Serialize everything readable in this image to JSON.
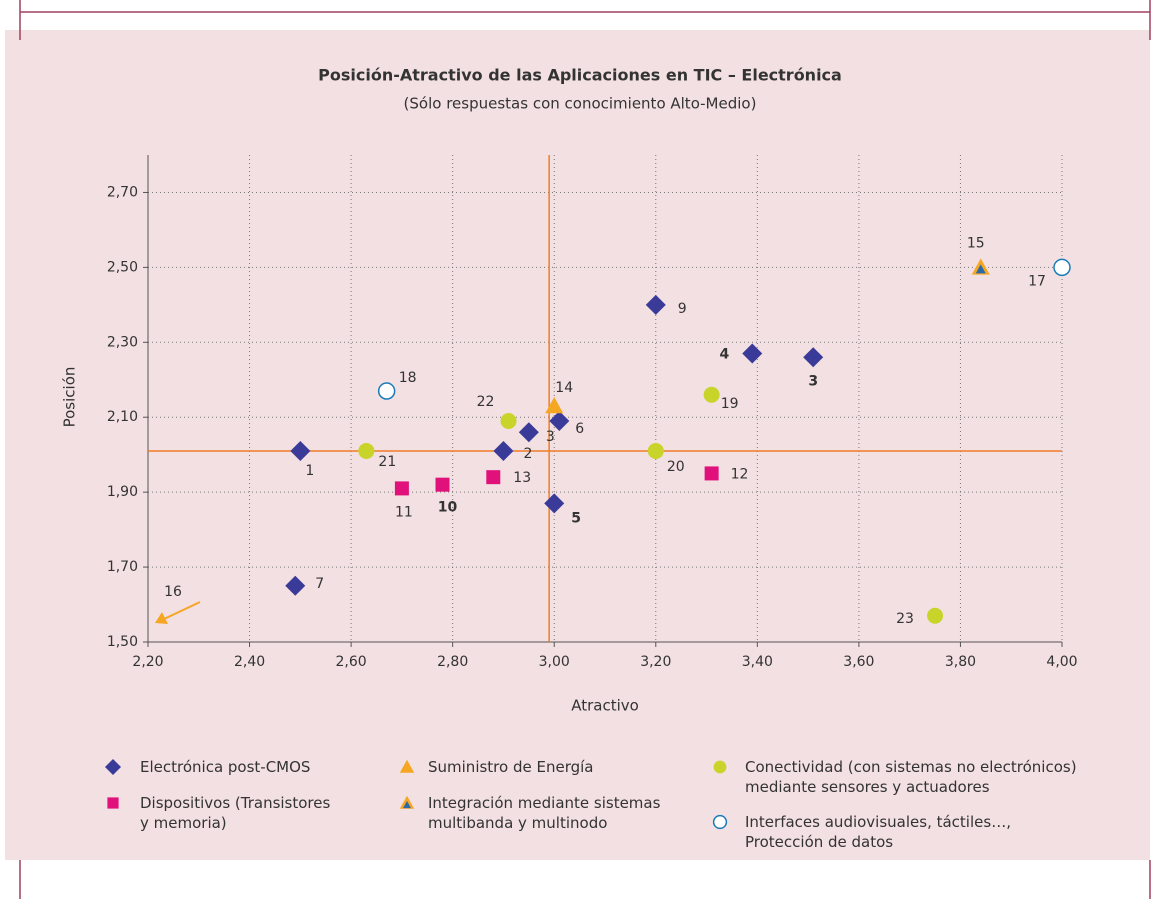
{
  "chart_data": {
    "type": "scatter",
    "title": "Posición-Atractivo de las Aplicaciones en TIC – Electrónica",
    "subtitle": "(Sólo respuestas con conocimiento Alto-Medio)",
    "xlabel": "Atractivo",
    "ylabel": "Posición",
    "xlim": [
      2.2,
      4.0
    ],
    "ylim": [
      1.5,
      2.8
    ],
    "xticks": [
      {
        "value": 2.2,
        "label": "2,20"
      },
      {
        "value": 2.4,
        "label": "2,40"
      },
      {
        "value": 2.6,
        "label": "2,60"
      },
      {
        "value": 2.8,
        "label": "2,80"
      },
      {
        "value": 3.0,
        "label": "3,00"
      },
      {
        "value": 3.2,
        "label": "3,20"
      },
      {
        "value": 3.4,
        "label": "3,40"
      },
      {
        "value": 3.6,
        "label": "3,60"
      },
      {
        "value": 3.8,
        "label": "3,80"
      },
      {
        "value": 4.0,
        "label": "4,00"
      }
    ],
    "yticks": [
      {
        "value": 1.5,
        "label": "1,50"
      },
      {
        "value": 1.7,
        "label": "1,70"
      },
      {
        "value": 1.9,
        "label": "1,90"
      },
      {
        "value": 2.1,
        "label": "2,10"
      },
      {
        "value": 2.3,
        "label": "2,30"
      },
      {
        "value": 2.5,
        "label": "2,50"
      },
      {
        "value": 2.7,
        "label": "2,70"
      }
    ],
    "grid": true,
    "reference_lines": {
      "x": 2.99,
      "y": 2.01,
      "color": "#f07c28"
    },
    "series": [
      {
        "name": "Electrónica post-CMOS",
        "marker": "diamond",
        "color": "#3a3a98",
        "x": [
          2.5,
          2.49,
          2.9,
          2.95,
          3.01,
          3.0,
          3.2,
          3.39,
          3.51
        ],
        "y": [
          2.01,
          1.65,
          2.01,
          2.06,
          2.09,
          1.87,
          2.4,
          2.27,
          2.26
        ],
        "labels": [
          "1",
          "7",
          "2",
          "3",
          "6",
          "5",
          "9",
          "4",
          "3"
        ],
        "bold": [
          false,
          false,
          false,
          false,
          false,
          true,
          false,
          true,
          true
        ]
      },
      {
        "name": "Dispositivos (Transistores y memoria)",
        "marker": "square",
        "color": "#e0117a",
        "x": [
          2.7,
          2.78,
          2.88,
          3.31
        ],
        "y": [
          1.91,
          1.92,
          1.94,
          1.95
        ],
        "labels": [
          "11",
          "10",
          "13",
          "12"
        ],
        "bold": [
          false,
          true,
          false,
          false
        ]
      },
      {
        "name": "Suministro de Energía",
        "marker": "triangle",
        "color": "#f5a623",
        "x": [
          3.0
        ],
        "y": [
          2.13
        ],
        "labels": [
          "14"
        ],
        "bold": [
          false
        ]
      },
      {
        "name": "Integración mediante sistemas multibanda y multinodo",
        "marker": "triangle-inner",
        "color": "#2a6aa8",
        "edgecolor": "#f5a623",
        "x": [
          3.84
        ],
        "y": [
          2.5
        ],
        "labels": [
          "15"
        ],
        "bold": [
          false
        ]
      },
      {
        "name": "Conectividad (con sistemas no electrónicos) mediante sensores y actuadores",
        "marker": "circle",
        "color": "#c8d42a",
        "x": [
          2.91,
          2.63,
          3.2,
          3.31,
          3.75
        ],
        "y": [
          2.09,
          2.01,
          2.01,
          2.16,
          1.57
        ],
        "labels": [
          "22",
          "21",
          "20",
          "19",
          "23"
        ],
        "bold": [
          false,
          false,
          false,
          false,
          false
        ]
      },
      {
        "name": "Interfaces audiovisuales, táctiles…, Protección de datos",
        "marker": "hollow-circle",
        "color": "#ffffff",
        "edgecolor": "#1a7ab8",
        "x": [
          2.67,
          4.0
        ],
        "y": [
          2.17,
          2.5
        ],
        "labels": [
          "18",
          "17"
        ],
        "bold": [
          false,
          false
        ]
      }
    ],
    "annotations": [
      {
        "text": "16",
        "color": "#f5a623"
      }
    ]
  }
}
